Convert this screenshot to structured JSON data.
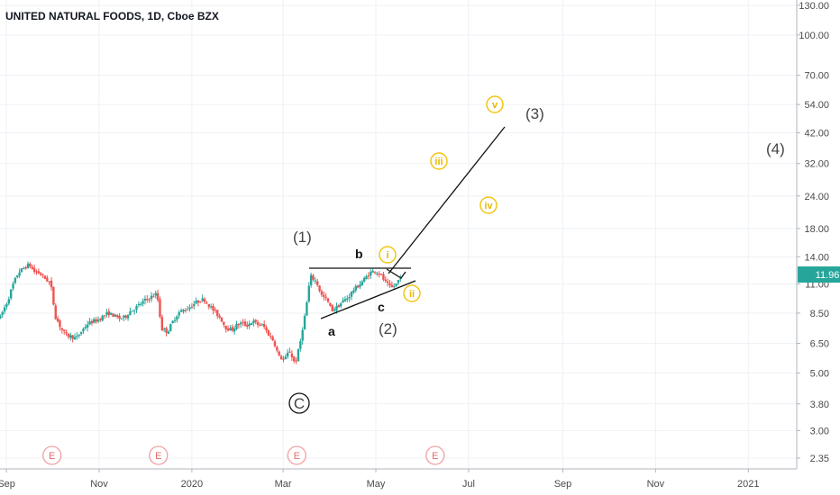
{
  "chart_data": {
    "type": "candlestick",
    "title": "UNITED NATURAL FOODS, 1D, Cboe BZX",
    "y_scale": "log",
    "ylim": [
      2.1,
      140
    ],
    "y_ticks": [
      "130.00",
      "100.00",
      "70.00",
      "54.00",
      "42.00",
      "32.00",
      "24.00",
      "18.00",
      "14.00",
      "11.00",
      "8.50",
      "6.50",
      "5.00",
      "3.80",
      "3.00",
      "2.35"
    ],
    "x_ticks": [
      "Sep",
      "Nov",
      "2020",
      "Mar",
      "May",
      "Jul",
      "Sep",
      "Nov",
      "2021"
    ],
    "last_price": "11.96",
    "up_color": "#26a69a",
    "down_color": "#ef5350",
    "earnings_label": "E",
    "earnings_dates": [
      "2019-10-01",
      "2019-12-10",
      "2020-03-10",
      "2020-06-09"
    ],
    "price_path": [
      [
        "2019-08-28",
        8.2
      ],
      [
        "2019-09-02",
        9.5
      ],
      [
        "2019-09-05",
        10.8
      ],
      [
        "2019-09-09",
        12.2
      ],
      [
        "2019-09-12",
        12.6
      ],
      [
        "2019-09-16",
        13.1
      ],
      [
        "2019-09-19",
        12.3
      ],
      [
        "2019-09-23",
        12.1
      ],
      [
        "2019-09-26",
        11.6
      ],
      [
        "2019-09-30",
        11.1
      ],
      [
        "2019-10-03",
        8.3
      ],
      [
        "2019-10-07",
        7.4
      ],
      [
        "2019-10-10",
        7.0
      ],
      [
        "2019-10-14",
        6.9
      ],
      [
        "2019-10-17",
        6.8
      ],
      [
        "2019-10-21",
        7.3
      ],
      [
        "2019-10-24",
        7.7
      ],
      [
        "2019-10-28",
        7.9
      ],
      [
        "2019-10-31",
        8.0
      ],
      [
        "2019-11-04",
        8.3
      ],
      [
        "2019-11-07",
        8.5
      ],
      [
        "2019-11-11",
        8.3
      ],
      [
        "2019-11-14",
        8.1
      ],
      [
        "2019-11-18",
        8.2
      ],
      [
        "2019-11-21",
        8.6
      ],
      [
        "2019-11-25",
        8.9
      ],
      [
        "2019-11-28",
        9.2
      ],
      [
        "2019-12-02",
        9.6
      ],
      [
        "2019-12-05",
        9.8
      ],
      [
        "2019-12-09",
        10.1
      ],
      [
        "2019-12-12",
        7.4
      ],
      [
        "2019-12-16",
        7.2
      ],
      [
        "2019-12-19",
        7.8
      ],
      [
        "2019-12-23",
        8.5
      ],
      [
        "2019-12-26",
        8.7
      ],
      [
        "2019-12-30",
        8.9
      ],
      [
        "2020-01-02",
        9.2
      ],
      [
        "2020-01-06",
        9.5
      ],
      [
        "2020-01-09",
        9.6
      ],
      [
        "2020-01-13",
        9.0
      ],
      [
        "2020-01-16",
        8.6
      ],
      [
        "2020-01-20",
        8.1
      ],
      [
        "2020-01-23",
        7.5
      ],
      [
        "2020-01-27",
        7.3
      ],
      [
        "2020-01-30",
        7.6
      ],
      [
        "2020-02-03",
        7.8
      ],
      [
        "2020-02-06",
        7.6
      ],
      [
        "2020-02-10",
        7.9
      ],
      [
        "2020-02-13",
        7.7
      ],
      [
        "2020-02-17",
        7.6
      ],
      [
        "2020-02-20",
        7.1
      ],
      [
        "2020-02-24",
        6.6
      ],
      [
        "2020-02-27",
        5.8
      ],
      [
        "2020-03-02",
        5.6
      ],
      [
        "2020-03-05",
        6.1
      ],
      [
        "2020-03-09",
        5.4
      ],
      [
        "2020-03-12",
        6.4
      ],
      [
        "2020-03-16",
        8.7
      ],
      [
        "2020-03-19",
        11.8
      ],
      [
        "2020-03-23",
        11.2
      ],
      [
        "2020-03-26",
        10.0
      ],
      [
        "2020-03-30",
        9.5
      ],
      [
        "2020-04-02",
        8.7
      ],
      [
        "2020-04-06",
        9.0
      ],
      [
        "2020-04-09",
        9.4
      ],
      [
        "2020-04-13",
        9.8
      ],
      [
        "2020-04-16",
        10.4
      ],
      [
        "2020-04-20",
        10.9
      ],
      [
        "2020-04-23",
        11.4
      ],
      [
        "2020-04-27",
        12.1
      ],
      [
        "2020-04-30",
        12.4
      ],
      [
        "2020-05-04",
        12.0
      ],
      [
        "2020-05-07",
        11.2
      ],
      [
        "2020-05-11",
        10.6
      ],
      [
        "2020-05-14",
        10.9
      ],
      [
        "2020-05-18",
        11.96
      ]
    ]
  },
  "annotations": {
    "wave_1": "(1)",
    "wave_2": "(2)",
    "wave_3": "(3)",
    "wave_4": "(4)",
    "wave_a": "a",
    "wave_b": "b",
    "wave_c": "c",
    "wave_C": "C",
    "minor_i": "i",
    "minor_ii": "ii",
    "minor_iii": "iii",
    "minor_iv": "iv",
    "minor_v": "v",
    "minor_color": "#f2c511"
  }
}
